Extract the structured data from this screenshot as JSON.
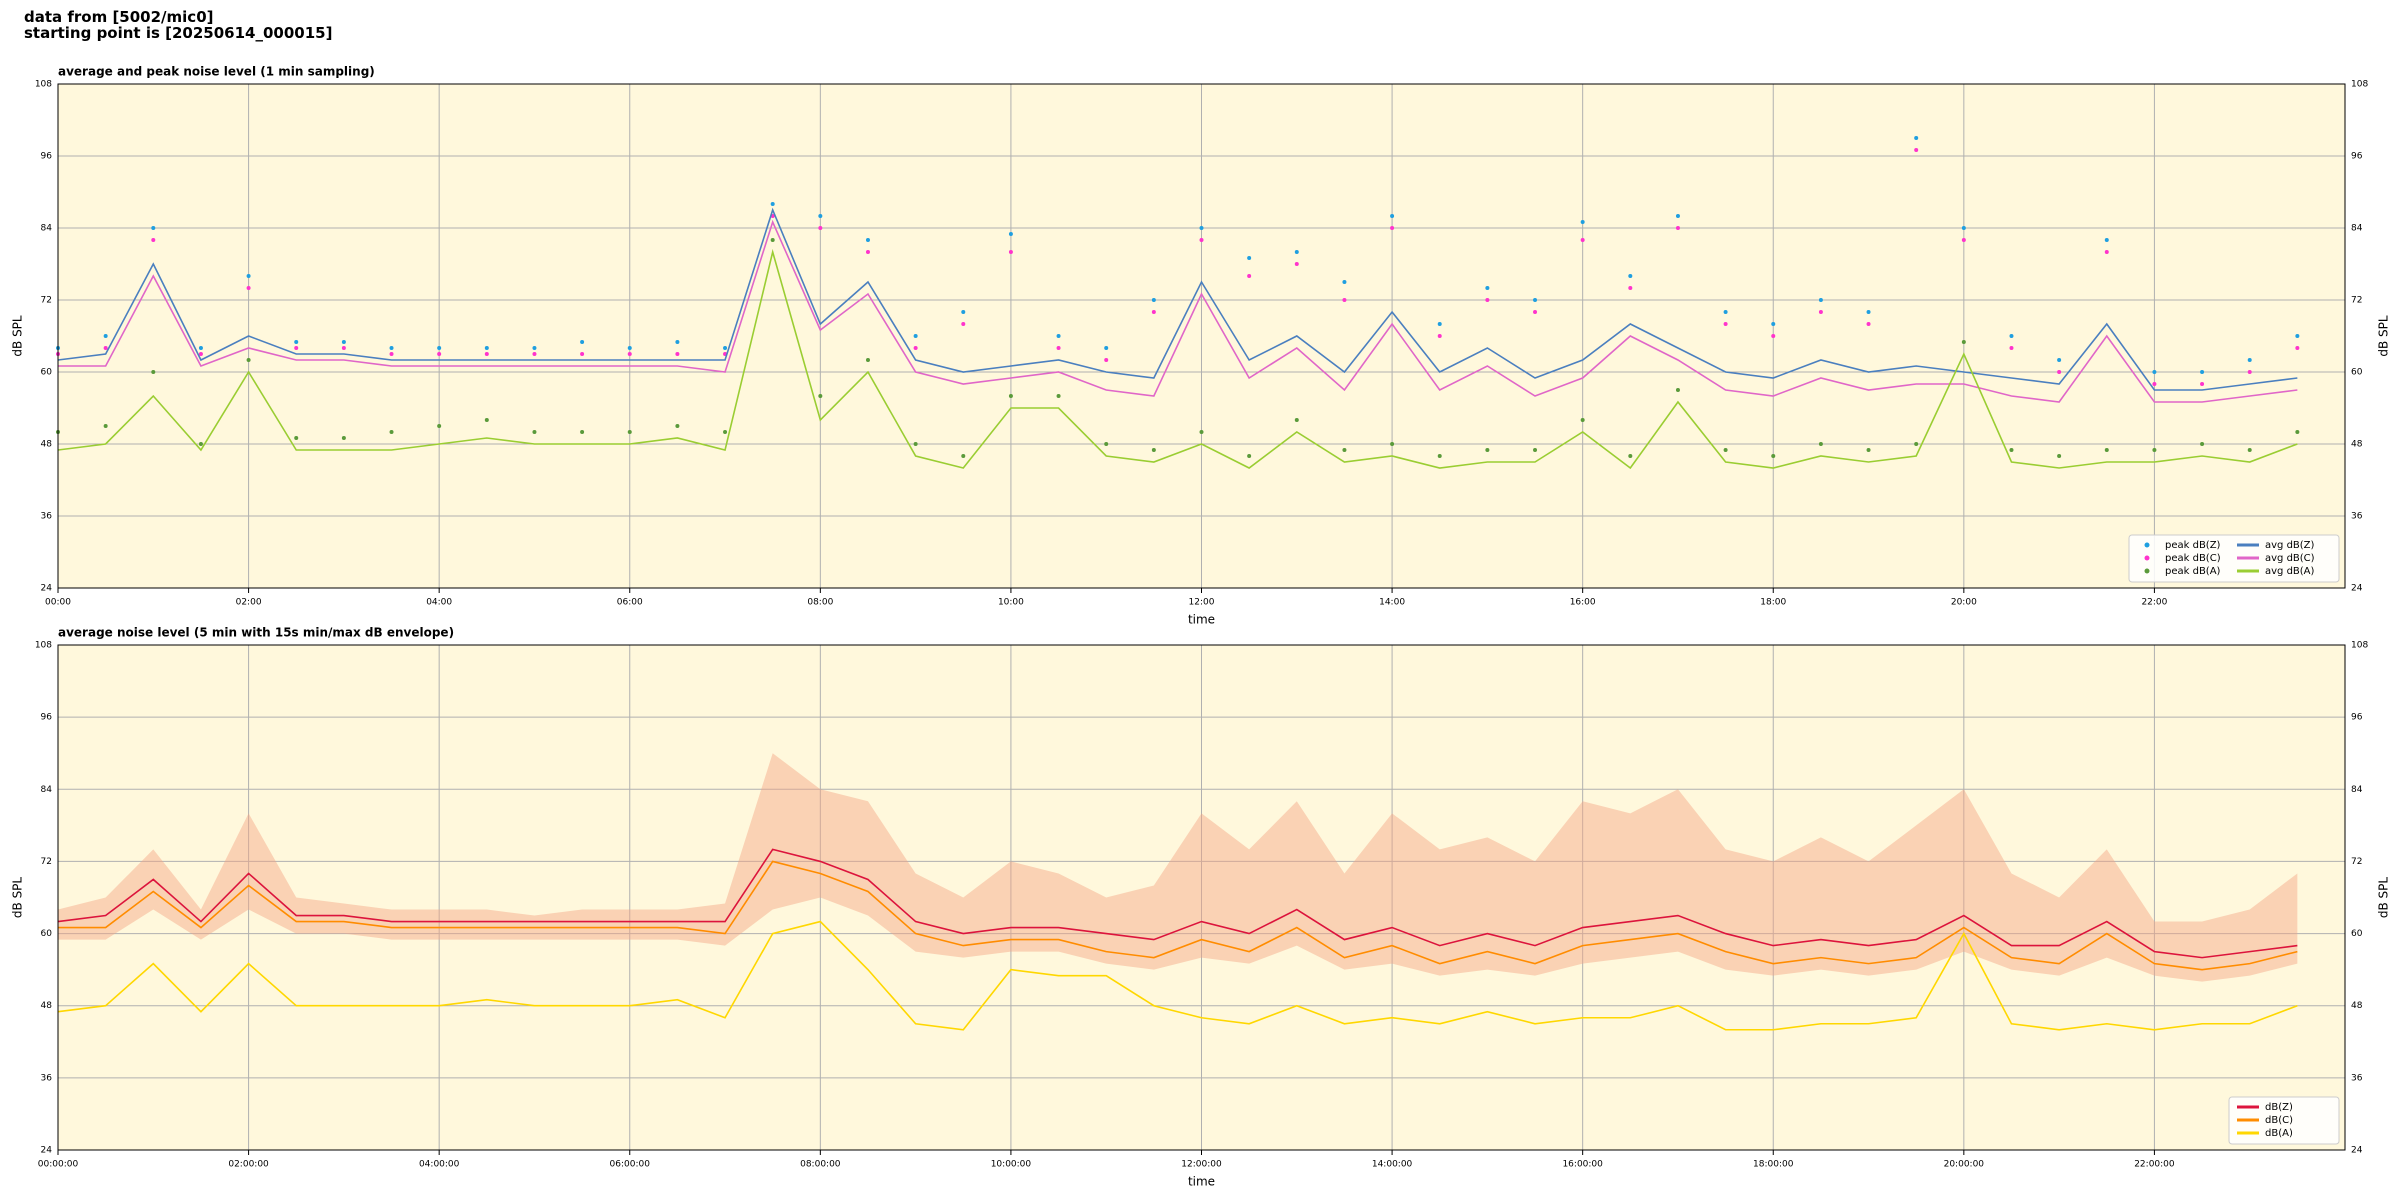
{
  "header": {
    "line1": "data from [5002/mic0]",
    "line2": "starting point is [20250614_000015]"
  },
  "chart_data": [
    {
      "type": "line",
      "title": "average and peak noise level (1 min sampling)",
      "xlabel": "time",
      "ylabel": "dB SPL",
      "legend": "lower right",
      "grid": true,
      "x": [
        "00:00",
        "00:30",
        "01:00",
        "01:30",
        "02:00",
        "02:30",
        "03:00",
        "03:30",
        "04:00",
        "04:30",
        "05:00",
        "05:30",
        "06:00",
        "06:30",
        "07:00",
        "07:30",
        "08:00",
        "08:30",
        "09:00",
        "09:30",
        "10:00",
        "10:30",
        "11:00",
        "11:30",
        "12:00",
        "12:30",
        "13:00",
        "13:30",
        "14:00",
        "14:30",
        "15:00",
        "15:30",
        "16:00",
        "16:30",
        "17:00",
        "17:30",
        "18:00",
        "18:30",
        "19:00",
        "19:30",
        "20:00",
        "20:30",
        "21:00",
        "21:30",
        "22:00",
        "22:30",
        "23:00",
        "23:30"
      ],
      "xlim": [
        "00:00",
        "24:00"
      ],
      "xticks": [
        "00:00",
        "02:00",
        "04:00",
        "06:00",
        "08:00",
        "10:00",
        "12:00",
        "14:00",
        "16:00",
        "18:00",
        "20:00",
        "22:00"
      ],
      "ylim": [
        24,
        108
      ],
      "yticks": [
        24,
        36,
        48,
        60,
        72,
        84,
        96,
        108
      ],
      "series": [
        {
          "name": "peak dB(Z)",
          "type": "scatter",
          "color": "#1f9fe0",
          "values": [
            64,
            66,
            84,
            64,
            76,
            65,
            65,
            64,
            64,
            64,
            64,
            65,
            64,
            65,
            64,
            88,
            86,
            82,
            66,
            70,
            83,
            66,
            64,
            72,
            84,
            79,
            80,
            75,
            86,
            68,
            74,
            72,
            85,
            76,
            86,
            70,
            68,
            72,
            70,
            99,
            84,
            66,
            62,
            82,
            60,
            60,
            62,
            66
          ]
        },
        {
          "name": "peak dB(C)",
          "type": "scatter",
          "color": "#ff33cc",
          "values": [
            63,
            64,
            82,
            63,
            74,
            64,
            64,
            63,
            63,
            63,
            63,
            63,
            63,
            63,
            63,
            86,
            84,
            80,
            64,
            68,
            80,
            64,
            62,
            70,
            82,
            76,
            78,
            72,
            84,
            66,
            72,
            70,
            82,
            74,
            84,
            68,
            66,
            70,
            68,
            97,
            82,
            64,
            60,
            80,
            58,
            58,
            60,
            64
          ]
        },
        {
          "name": "peak dB(A)",
          "type": "scatter",
          "color": "#5a9a3a",
          "values": [
            50,
            51,
            60,
            48,
            62,
            49,
            49,
            50,
            51,
            52,
            50,
            50,
            50,
            51,
            50,
            82,
            56,
            62,
            48,
            46,
            56,
            56,
            48,
            47,
            50,
            46,
            52,
            47,
            48,
            46,
            47,
            47,
            52,
            46,
            57,
            47,
            46,
            48,
            47,
            48,
            65,
            47,
            46,
            47,
            47,
            48,
            47,
            50
          ]
        },
        {
          "name": "avg dB(Z)",
          "type": "line",
          "color": "#4a7fbf",
          "values": [
            62,
            63,
            78,
            62,
            66,
            63,
            63,
            62,
            62,
            62,
            62,
            62,
            62,
            62,
            62,
            87,
            68,
            75,
            62,
            60,
            61,
            62,
            60,
            59,
            75,
            62,
            66,
            60,
            70,
            60,
            64,
            59,
            62,
            68,
            64,
            60,
            59,
            62,
            60,
            61,
            60,
            59,
            58,
            68,
            57,
            57,
            58,
            59
          ]
        },
        {
          "name": "avg dB(C)",
          "type": "line",
          "color": "#e066c8",
          "values": [
            61,
            61,
            76,
            61,
            64,
            62,
            62,
            61,
            61,
            61,
            61,
            61,
            61,
            61,
            60,
            85,
            67,
            73,
            60,
            58,
            59,
            60,
            57,
            56,
            73,
            59,
            64,
            57,
            68,
            57,
            61,
            56,
            59,
            66,
            62,
            57,
            56,
            59,
            57,
            58,
            58,
            56,
            55,
            66,
            55,
            55,
            56,
            57
          ]
        },
        {
          "name": "avg dB(A)",
          "type": "line",
          "color": "#9acd32",
          "values": [
            47,
            48,
            56,
            47,
            60,
            47,
            47,
            47,
            48,
            49,
            48,
            48,
            48,
            49,
            47,
            80,
            52,
            60,
            46,
            44,
            54,
            54,
            46,
            45,
            48,
            44,
            50,
            45,
            46,
            44,
            45,
            45,
            50,
            44,
            55,
            45,
            44,
            46,
            45,
            46,
            63,
            45,
            44,
            45,
            45,
            46,
            45,
            48
          ]
        }
      ]
    },
    {
      "type": "line",
      "title": "average noise level (5 min with 15s min/max dB envelope)",
      "xlabel": "time",
      "ylabel": "dB SPL",
      "legend": "lower right",
      "grid": true,
      "x": [
        "00:00:00",
        "00:30:00",
        "01:00:00",
        "01:30:00",
        "02:00:00",
        "02:30:00",
        "03:00:00",
        "03:30:00",
        "04:00:00",
        "04:30:00",
        "05:00:00",
        "05:30:00",
        "06:00:00",
        "06:30:00",
        "07:00:00",
        "07:30:00",
        "08:00:00",
        "08:30:00",
        "09:00:00",
        "09:30:00",
        "10:00:00",
        "10:30:00",
        "11:00:00",
        "11:30:00",
        "12:00:00",
        "12:30:00",
        "13:00:00",
        "13:30:00",
        "14:00:00",
        "14:30:00",
        "15:00:00",
        "15:30:00",
        "16:00:00",
        "16:30:00",
        "17:00:00",
        "17:30:00",
        "18:00:00",
        "18:30:00",
        "19:00:00",
        "19:30:00",
        "20:00:00",
        "20:30:00",
        "21:00:00",
        "21:30:00",
        "22:00:00",
        "22:30:00",
        "23:00:00",
        "23:30:00"
      ],
      "xlim": [
        "00:00:00",
        "24:00:00"
      ],
      "xticks": [
        "00:00:00",
        "02:00:00",
        "04:00:00",
        "06:00:00",
        "08:00:00",
        "10:00:00",
        "12:00:00",
        "14:00:00",
        "16:00:00",
        "18:00:00",
        "20:00:00",
        "22:00:00"
      ],
      "ylim": [
        24,
        108
      ],
      "yticks": [
        24,
        36,
        48,
        60,
        72,
        84,
        96,
        108
      ],
      "envelope": {
        "color": "#f4a582",
        "upper": [
          64,
          66,
          74,
          64,
          80,
          66,
          65,
          64,
          64,
          64,
          63,
          64,
          64,
          64,
          65,
          90,
          84,
          82,
          70,
          66,
          72,
          70,
          66,
          68,
          80,
          74,
          82,
          70,
          80,
          74,
          76,
          72,
          82,
          80,
          84,
          74,
          72,
          76,
          72,
          78,
          84,
          70,
          66,
          74,
          62,
          62,
          64,
          70
        ],
        "lower": [
          59,
          59,
          64,
          59,
          64,
          60,
          60,
          59,
          59,
          59,
          59,
          59,
          59,
          59,
          58,
          64,
          66,
          63,
          57,
          56,
          57,
          57,
          55,
          54,
          56,
          55,
          58,
          54,
          55,
          53,
          54,
          53,
          55,
          56,
          57,
          54,
          53,
          54,
          53,
          54,
          57,
          54,
          53,
          56,
          53,
          52,
          53,
          55
        ]
      },
      "series": [
        {
          "name": "dB(Z)",
          "type": "line",
          "color": "#dc143c",
          "values": [
            62,
            63,
            69,
            62,
            70,
            63,
            63,
            62,
            62,
            62,
            62,
            62,
            62,
            62,
            62,
            74,
            72,
            69,
            62,
            60,
            61,
            61,
            60,
            59,
            62,
            60,
            64,
            59,
            61,
            58,
            60,
            58,
            61,
            62,
            63,
            60,
            58,
            59,
            58,
            59,
            63,
            58,
            58,
            62,
            57,
            56,
            57,
            58
          ]
        },
        {
          "name": "dB(C)",
          "type": "line",
          "color": "#ff8c00",
          "values": [
            61,
            61,
            67,
            61,
            68,
            62,
            62,
            61,
            61,
            61,
            61,
            61,
            61,
            61,
            60,
            72,
            70,
            67,
            60,
            58,
            59,
            59,
            57,
            56,
            59,
            57,
            61,
            56,
            58,
            55,
            57,
            55,
            58,
            59,
            60,
            57,
            55,
            56,
            55,
            56,
            61,
            56,
            55,
            60,
            55,
            54,
            55,
            57
          ]
        },
        {
          "name": "dB(A)",
          "type": "line",
          "color": "#ffd700",
          "values": [
            47,
            48,
            55,
            47,
            55,
            48,
            48,
            48,
            48,
            49,
            48,
            48,
            48,
            49,
            46,
            60,
            62,
            54,
            45,
            44,
            54,
            53,
            53,
            48,
            46,
            45,
            48,
            45,
            46,
            45,
            47,
            45,
            46,
            46,
            48,
            44,
            44,
            45,
            45,
            46,
            60,
            45,
            44,
            45,
            44,
            45,
            45,
            48
          ]
        }
      ]
    }
  ]
}
